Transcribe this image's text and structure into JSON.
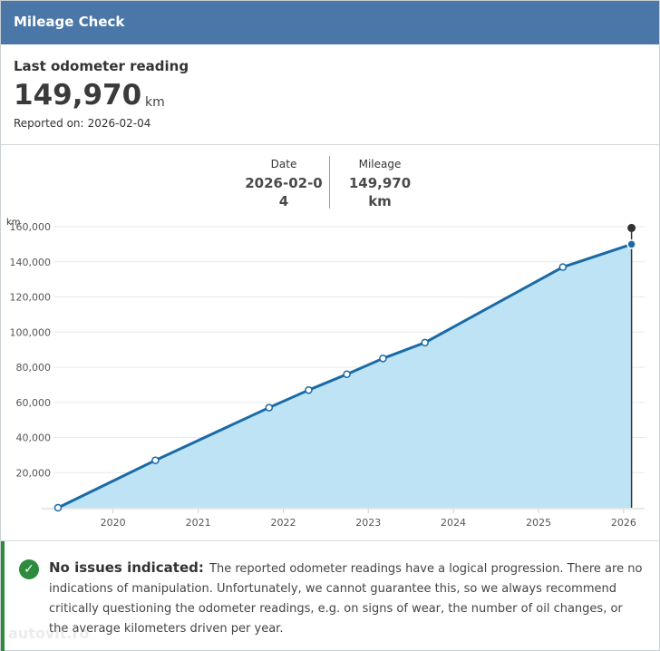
{
  "header": {
    "title": "Mileage Check"
  },
  "summary": {
    "label": "Last odometer reading",
    "value": "149,970",
    "unit": "km",
    "reported_label": "Reported on:",
    "reported_date": "2026-02-04"
  },
  "tooltip": {
    "date_label": "Date",
    "date_value": "2026-02-04",
    "mileage_label": "Mileage",
    "mileage_value": "149,970 km"
  },
  "notice": {
    "title": "No issues indicated:",
    "text": "The reported odometer readings have a logical progression. There are no indications of manipulation. Unfortunately, we cannot guarantee this, so we always recommend critically questioning the odometer readings, e.g. on signs of wear, the number of oil changes, or the average kilometers driven per year.",
    "status_color": "#2e8b3e",
    "icon": "check-circle-icon"
  },
  "watermark": "autovit.ro",
  "colors": {
    "header": "#4a77a8",
    "line": "#1a6aa6",
    "fill": "#bde3f5"
  },
  "chart_data": {
    "type": "area",
    "ylabel": "km",
    "xlabel": "",
    "x_ticks": [
      "2020",
      "2021",
      "2022",
      "2023",
      "2024",
      "2025",
      "2026"
    ],
    "y_ticks": [
      "20,000",
      "40,000",
      "60,000",
      "80,000",
      "100,000",
      "120,000",
      "140,000",
      "160,000"
    ],
    "ylim": [
      0,
      160000
    ],
    "xlim": [
      "2019-03-01",
      "2026-04-01"
    ],
    "grid": true,
    "series": [
      {
        "x": [
          "2019-05-10",
          "2020-07-01",
          "2021-11-01",
          "2022-04-20",
          "2022-10-01",
          "2023-03-05",
          "2023-09-01",
          "2025-04-15",
          "2026-02-04"
        ],
        "values": [
          0,
          27000,
          57000,
          67000,
          76000,
          85000,
          94000,
          137000,
          149970
        ]
      }
    ],
    "selected": {
      "x": "2026-02-04",
      "value": 149970
    }
  }
}
